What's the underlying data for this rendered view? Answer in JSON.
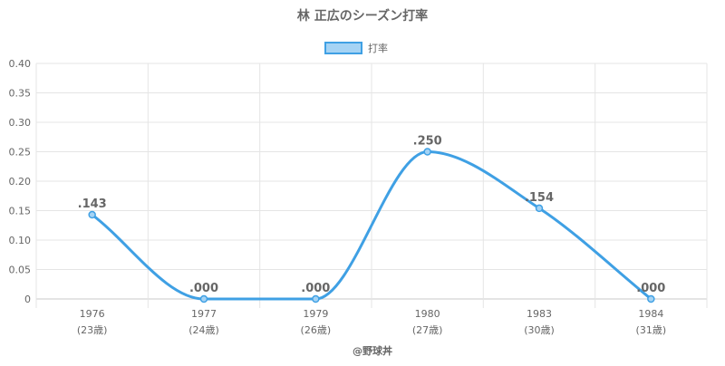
{
  "chart_data": {
    "type": "line",
    "title": "林 正広のシーズン打率",
    "legend": {
      "label": "打率",
      "position": "top-center"
    },
    "categories": [
      "1976",
      "1977",
      "1979",
      "1980",
      "1983",
      "1984"
    ],
    "category_sublabels": [
      "(23歳)",
      "(24歳)",
      "(26歳)",
      "(27歳)",
      "(30歳)",
      "(31歳)"
    ],
    "series": [
      {
        "name": "打率",
        "values": [
          0.143,
          0.0,
          0.0,
          0.25,
          0.154,
          0.0
        ],
        "data_labels": [
          ".143",
          ".000",
          ".000",
          ".250",
          ".154",
          ".000"
        ]
      }
    ],
    "yticks": [
      "0",
      "0.05",
      "0.10",
      "0.15",
      "0.20",
      "0.25",
      "0.30",
      "0.35",
      "0.40"
    ],
    "ylim": [
      0,
      0.4
    ],
    "grid": true,
    "colors": {
      "line": "#3fa0e4",
      "legend_fill": "#a5d3f4",
      "grid": "#e5e5e5",
      "axis": "#c8c8c8",
      "text": "#666666"
    }
  },
  "footer": {
    "credit": "@野球丼"
  }
}
